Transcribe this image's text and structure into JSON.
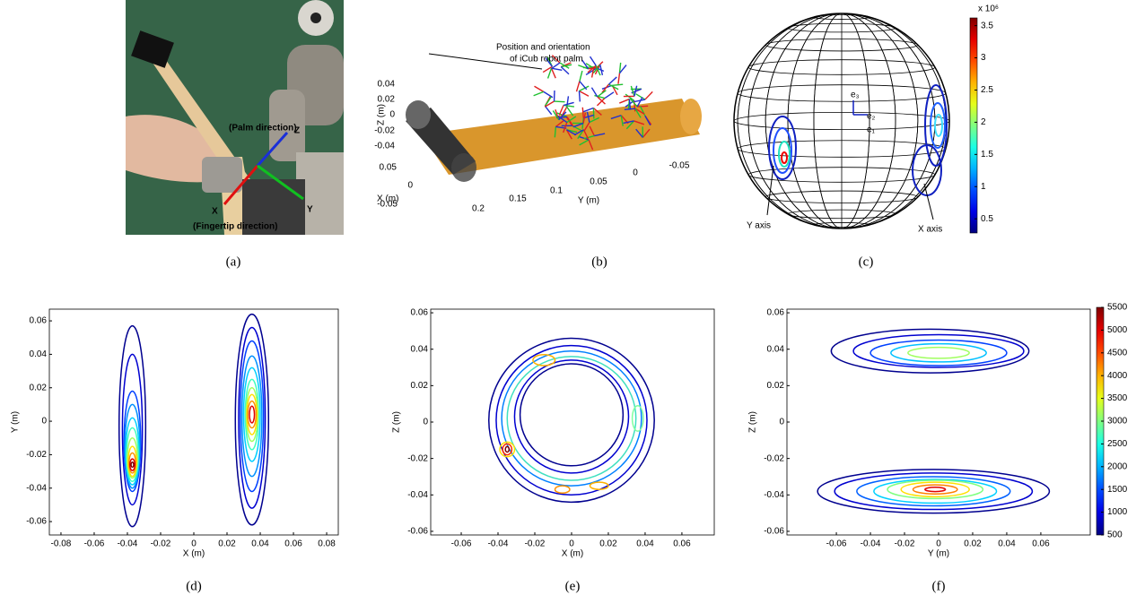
{
  "chart_data": [
    {
      "type": "photo",
      "caption": "(a)",
      "labels": [
        "(Palm direction)",
        "Z",
        "X",
        "Y",
        "(Fingertip direction)"
      ],
      "label_colors": [
        "#1a2fd8",
        "#1a2fd8",
        "#e01010",
        "#10c020",
        "#e01010"
      ]
    },
    {
      "type": "frames3d",
      "caption": "(b)",
      "annotation": [
        "Position and orientation",
        "of iCub robot palm"
      ],
      "zlabel": "Z (m)",
      "xlabel": "X (m)",
      "ylabel": "Y (m)",
      "zticks": [
        0.04,
        0.02,
        0,
        -0.02,
        -0.04
      ],
      "xticks": [
        0.05,
        0,
        -0.05
      ],
      "yticks": [
        0.2,
        0.15,
        0.1,
        0.05,
        0,
        -0.05
      ]
    },
    {
      "type": "sphere",
      "caption": "(c)",
      "labels": [
        "e₃",
        "e₂",
        "e₁",
        "Y axis",
        "X axis"
      ],
      "colorbar_exponent": "x 10⁶",
      "clim": [
        0.28,
        3.62
      ],
      "cticks": [
        0.5,
        1,
        1.5,
        2,
        2.5,
        3,
        3.5
      ]
    },
    {
      "type": "contour",
      "caption": "(d)",
      "xlabel": "X (m)",
      "ylabel": "Y (m)",
      "xlim": [
        -0.087,
        0.087
      ],
      "ylim": [
        -0.068,
        0.067
      ],
      "xticks": [
        -0.08,
        -0.06,
        -0.04,
        -0.02,
        0,
        0.02,
        0.04,
        0.06,
        0.08
      ],
      "yticks": [
        -0.06,
        -0.04,
        -0.02,
        0,
        0.02,
        0.04,
        0.06
      ],
      "contours": {
        "cx": [
          0.035,
          0.035,
          0.035,
          0.035,
          0.035,
          0.035,
          0.035,
          0.035,
          0.035,
          0.035,
          -0.037,
          -0.037,
          -0.037,
          -0.037,
          -0.037,
          -0.037,
          -0.037,
          -0.037,
          -0.037,
          -0.037,
          -0.037
        ],
        "cy": [
          0.001,
          0.002,
          0.003,
          0.003,
          0.004,
          0.004,
          0.004,
          0.004,
          0.004,
          0.004,
          -0.003,
          -0.005,
          -0.012,
          -0.015,
          -0.018,
          -0.02,
          -0.022,
          -0.024,
          -0.025,
          -0.026,
          -0.026
        ],
        "rx": [
          0.01,
          0.008,
          0.007,
          0.006,
          0.005,
          0.004,
          0.0035,
          0.003,
          0.0025,
          0.0015,
          0.008,
          0.006,
          0.005,
          0.0045,
          0.004,
          0.0035,
          0.003,
          0.0025,
          0.002,
          0.0015,
          0.0008
        ],
        "ry": [
          0.063,
          0.054,
          0.045,
          0.036,
          0.028,
          0.021,
          0.016,
          0.012,
          0.008,
          0.005,
          0.06,
          0.045,
          0.03,
          0.025,
          0.02,
          0.016,
          0.012,
          0.009,
          0.006,
          0.0035,
          0.0015
        ],
        "colors": [
          "#00008f",
          "#0000d0",
          "#0040ff",
          "#0090ff",
          "#00d0ff",
          "#40ffc0",
          "#a0ff60",
          "#ffe000",
          "#ff9000",
          "#e00000",
          "#00008f",
          "#0000d0",
          "#0040ff",
          "#0090ff",
          "#00d0ff",
          "#40ffc0",
          "#a0ff60",
          "#ffe000",
          "#ff9000",
          "#e00000",
          "#800000"
        ]
      }
    },
    {
      "type": "contour",
      "caption": "(e)",
      "xlabel": "X (m)",
      "ylabel": "Z (m)",
      "xlim": [
        -0.0766,
        0.0776
      ],
      "ylim": [
        -0.062,
        0.062
      ],
      "xticks": [
        -0.06,
        -0.04,
        -0.02,
        0,
        0.02,
        0.04,
        0.06
      ],
      "yticks": [
        -0.06,
        -0.04,
        -0.02,
        0,
        0.02,
        0.04,
        0.06
      ],
      "contours": {
        "cx": [
          0,
          0,
          0,
          0,
          0,
          0,
          -0.035,
          -0.035,
          -0.035,
          -0.015,
          -0.005,
          0.015,
          0.036
        ],
        "cy": [
          0.001,
          0.001,
          0.002,
          0.002,
          0.003,
          0.004,
          -0.015,
          -0.015,
          -0.015,
          0.034,
          -0.037,
          -0.035,
          0.002
        ],
        "rx": [
          0.045,
          0.041,
          0.038,
          0.035,
          0.031,
          0.028,
          0.004,
          0.0025,
          0.001,
          0.006,
          0.004,
          0.005,
          0.003
        ],
        "ry": [
          0.045,
          0.041,
          0.037,
          0.034,
          0.031,
          0.028,
          0.004,
          0.003,
          0.0015,
          0.003,
          0.002,
          0.002,
          0.007
        ],
        "colors": [
          "#00008f",
          "#0000d0",
          "#0080ff",
          "#40e0c0",
          "#0000d0",
          "#00008f",
          "#ffe000",
          "#ff3000",
          "#800000",
          "#ffb000",
          "#ff9000",
          "#ffb000",
          "#80ffa0"
        ]
      }
    },
    {
      "type": "contour",
      "caption": "(f)",
      "xlabel": "Y (m)",
      "ylabel": "Z (m)",
      "xlim": [
        -0.089,
        0.089
      ],
      "ylim": [
        -0.062,
        0.062
      ],
      "xticks": [
        -0.06,
        -0.04,
        -0.02,
        0,
        0.02,
        0.04,
        0.06
      ],
      "yticks": [
        -0.06,
        -0.04,
        -0.02,
        0,
        0.02,
        0.04,
        0.06
      ],
      "clim": [
        500,
        5500
      ],
      "cticks": [
        500,
        1000,
        1500,
        2000,
        2500,
        3000,
        3500,
        4000,
        4500,
        5000,
        5500
      ],
      "contours": {
        "cx": [
          -0.005,
          0,
          0,
          0,
          0,
          -0.003,
          -0.003,
          -0.003,
          -0.002,
          -0.002,
          -0.002,
          -0.002,
          -0.002
        ],
        "cy": [
          0.039,
          0.039,
          0.038,
          0.038,
          0.038,
          -0.038,
          -0.038,
          -0.038,
          -0.038,
          -0.037,
          -0.037,
          -0.037,
          -0.037
        ],
        "rx": [
          0.058,
          0.05,
          0.04,
          0.028,
          0.018,
          0.068,
          0.058,
          0.045,
          0.036,
          0.028,
          0.02,
          0.013,
          0.006
        ],
        "ry": [
          0.012,
          0.009,
          0.007,
          0.005,
          0.003,
          0.012,
          0.01,
          0.008,
          0.0065,
          0.005,
          0.004,
          0.0025,
          0.0012
        ],
        "colors": [
          "#00008f",
          "#0000d0",
          "#0040ff",
          "#00c0ff",
          "#a0ff60",
          "#00008f",
          "#0000d0",
          "#0060ff",
          "#00d0ff",
          "#80ff80",
          "#ffe000",
          "#ff8000",
          "#e00000"
        ]
      }
    }
  ]
}
